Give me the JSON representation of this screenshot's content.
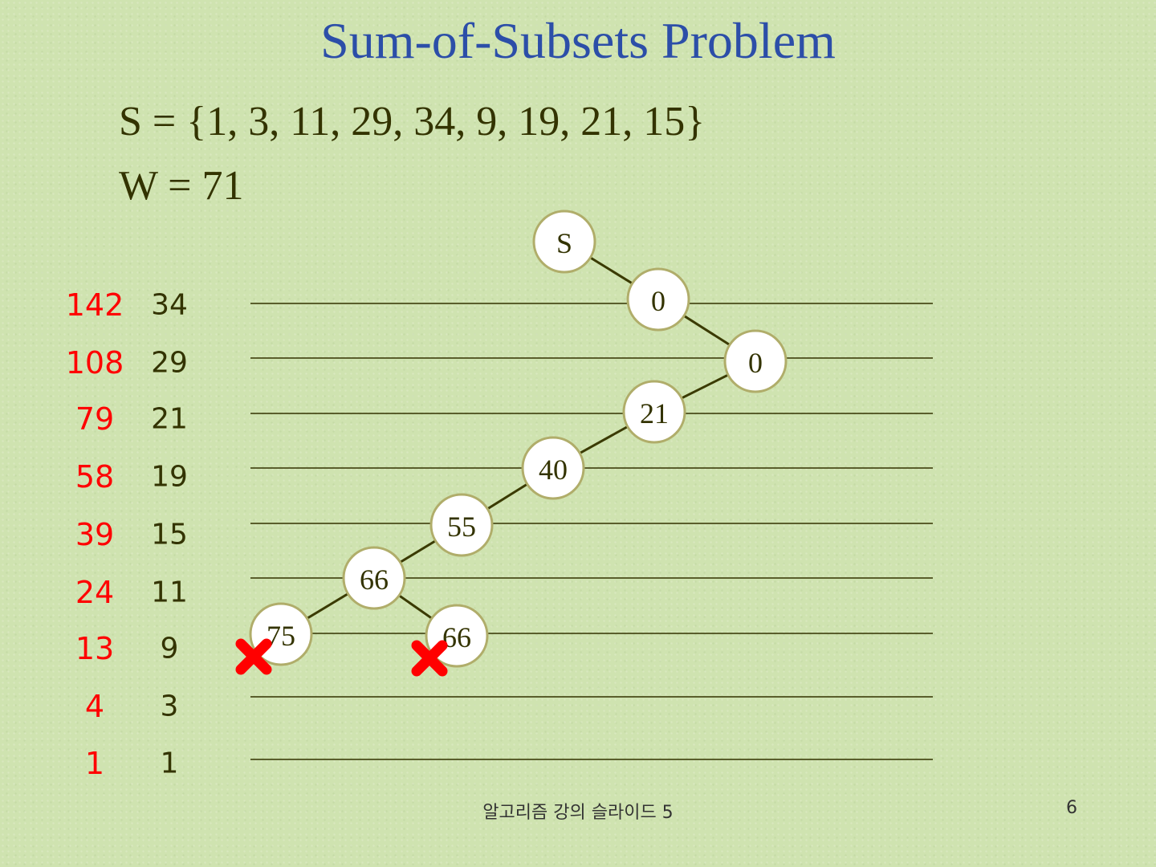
{
  "slide": {
    "title": "Sum-of-Subsets Problem",
    "set_line": "S = {1, 3, 11, 29, 34, 9, 19, 21, 15}",
    "w_line": "W = 71",
    "footer": "알고리즘 강의 슬라이드 5",
    "page_number": "6"
  },
  "levels": [
    {
      "cumulative": "142",
      "weight": "34"
    },
    {
      "cumulative": "108",
      "weight": "29"
    },
    {
      "cumulative": "79",
      "weight": "21"
    },
    {
      "cumulative": "58",
      "weight": "19"
    },
    {
      "cumulative": "39",
      "weight": "15"
    },
    {
      "cumulative": "24",
      "weight": "11"
    },
    {
      "cumulative": "13",
      "weight": "9"
    },
    {
      "cumulative": "4",
      "weight": "3"
    },
    {
      "cumulative": "1",
      "weight": "1"
    }
  ],
  "tree": {
    "nodes": [
      {
        "id": "root",
        "label": "S"
      },
      {
        "id": "n1",
        "label": "0"
      },
      {
        "id": "n2",
        "label": "0"
      },
      {
        "id": "n3",
        "label": "21"
      },
      {
        "id": "n4",
        "label": "40"
      },
      {
        "id": "n5",
        "label": "55"
      },
      {
        "id": "n6",
        "label": "66"
      },
      {
        "id": "n7",
        "label": "75",
        "pruned": true
      },
      {
        "id": "n8",
        "label": "66",
        "pruned": true
      }
    ],
    "edges": [
      [
        "root",
        "n1"
      ],
      [
        "n1",
        "n2"
      ],
      [
        "n2",
        "n3"
      ],
      [
        "n3",
        "n4"
      ],
      [
        "n4",
        "n5"
      ],
      [
        "n5",
        "n6"
      ],
      [
        "n6",
        "n7"
      ],
      [
        "n6",
        "n8"
      ]
    ]
  },
  "colors": {
    "title": "#2c4ea8",
    "text": "#333300",
    "cumulative": "#ff0000",
    "weight": "#333300",
    "rule": "#333300",
    "edge": "#3a3a00",
    "node_fill": "#ffffff",
    "node_stroke": "#b0ad6a",
    "prune_mark": "#ff0000"
  }
}
